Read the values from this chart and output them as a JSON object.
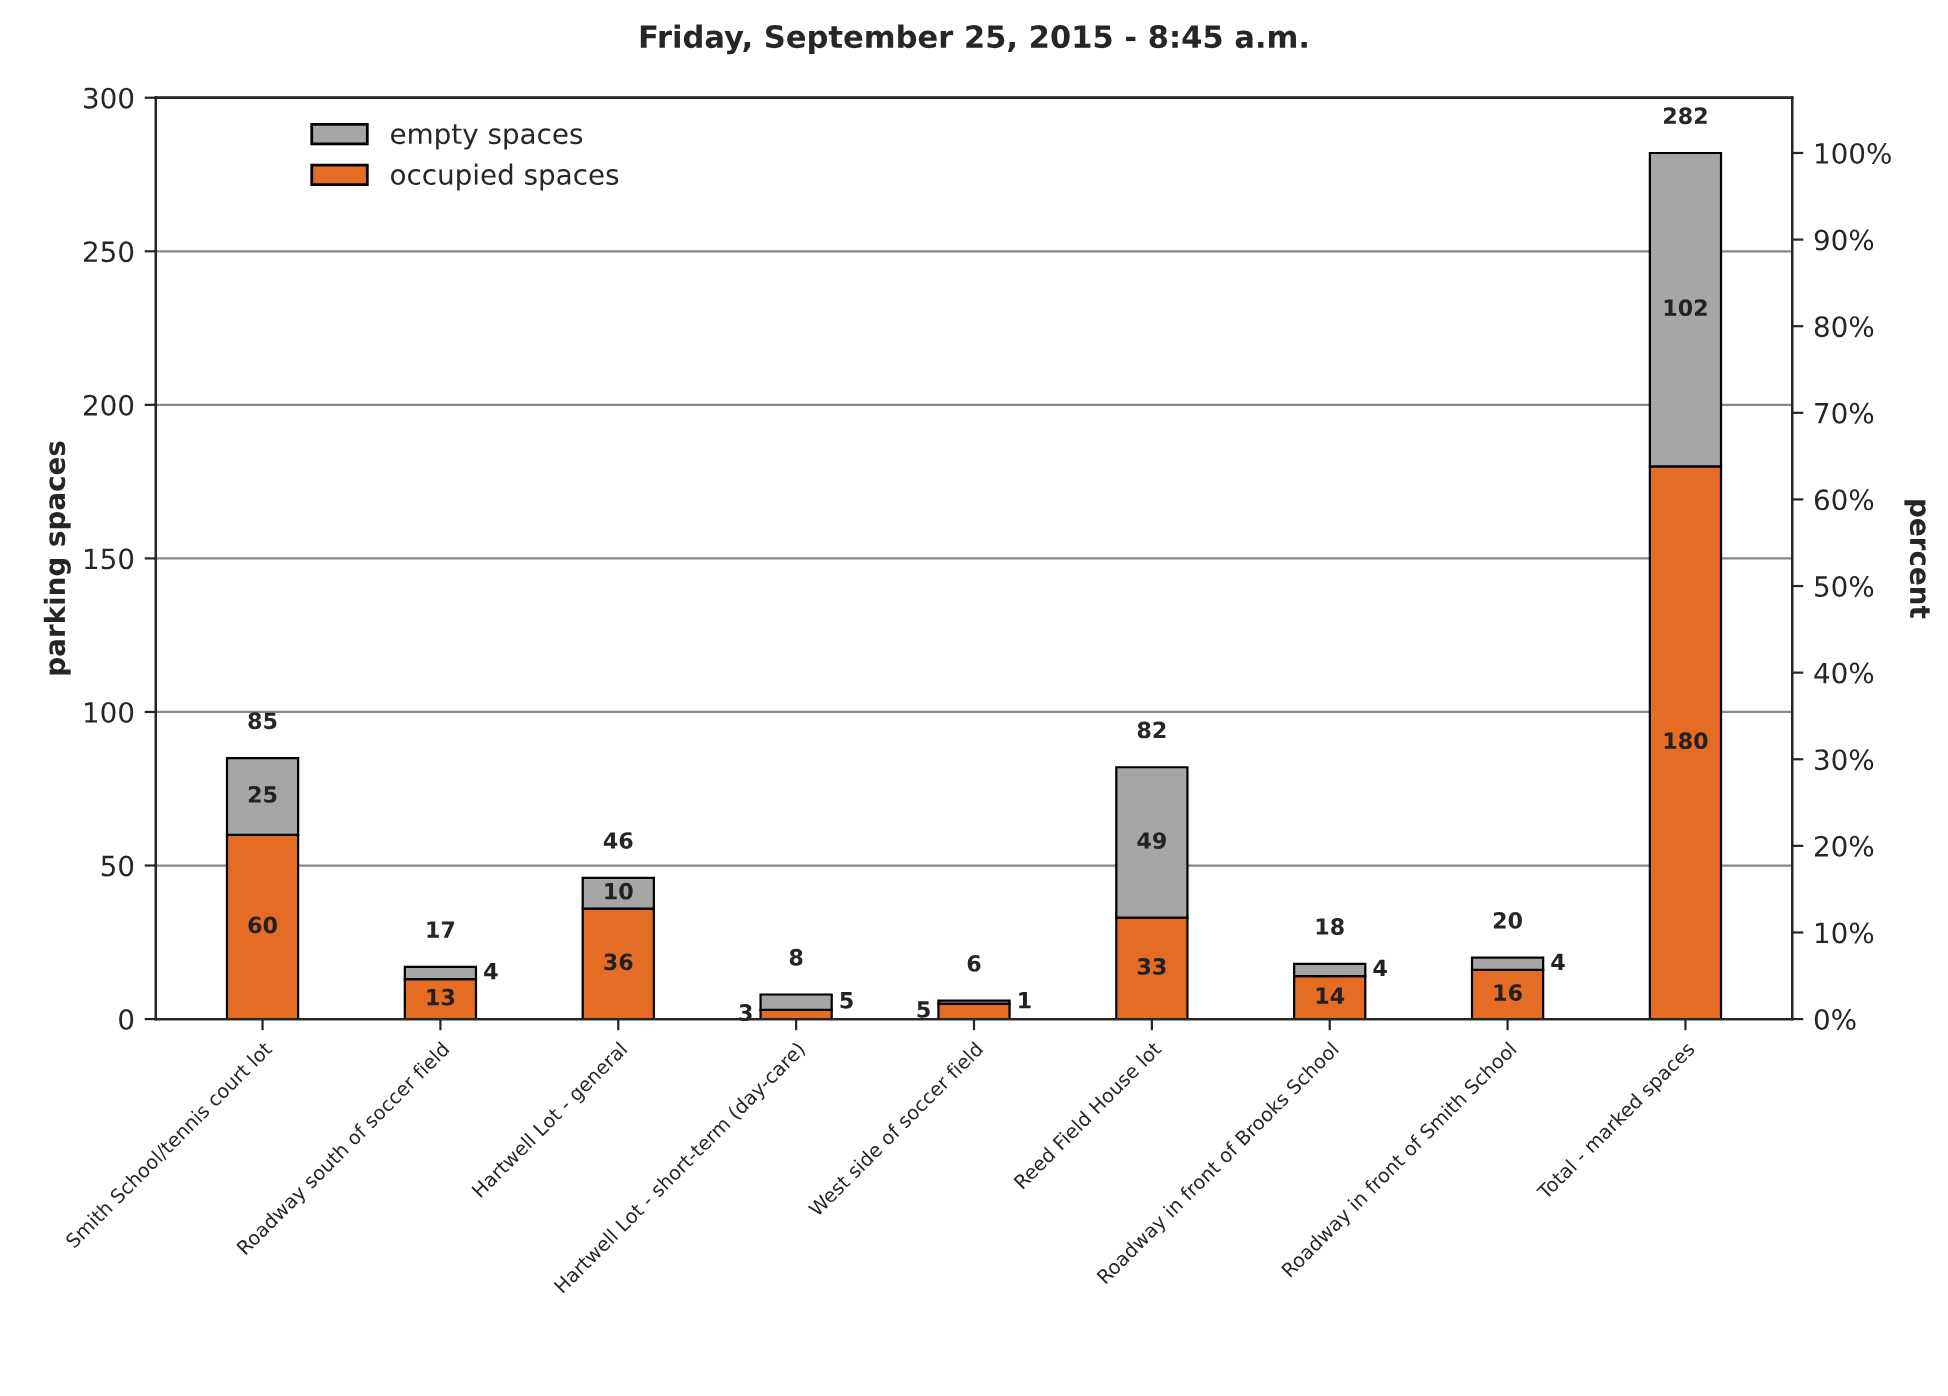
{
  "chart_data": {
    "type": "bar",
    "title": "Friday, September 25, 2015 - 8:45 a.m.",
    "ylabel": "parking spaces",
    "y2label": "percent",
    "categories": [
      "Smith School/tennis court lot",
      "Roadway south of soccer field",
      "Hartwell Lot - general",
      "Hartwell Lot - short-term (day-care)",
      "West side of soccer field",
      "Reed Field House lot",
      "Roadway in front of Brooks School",
      "Roadway in front of Smith School",
      "Total - marked spaces"
    ],
    "stacked": true,
    "series": [
      {
        "name": "occupied spaces",
        "color": "#e46c24",
        "values": [
          60,
          13,
          36,
          3,
          5,
          33,
          14,
          16,
          180
        ]
      },
      {
        "name": "empty spaces",
        "color": "#a6a6a6",
        "values": [
          25,
          4,
          10,
          5,
          1,
          49,
          4,
          4,
          102
        ]
      }
    ],
    "data_labels": true,
    "totals": [
      "85",
      "17",
      "46",
      "8",
      "6",
      "82",
      "18",
      "20",
      "282"
    ],
    "ylim": [
      0,
      300
    ],
    "yticks": [
      0,
      50,
      100,
      150,
      200,
      250,
      300
    ],
    "y2lim": [
      0,
      106.38
    ],
    "y2ticks": [
      {
        "value": 0,
        "label": "0%"
      },
      {
        "value": 10,
        "label": "10%"
      },
      {
        "value": 20,
        "label": "20%"
      },
      {
        "value": 30,
        "label": "30%"
      },
      {
        "value": 40,
        "label": "40%"
      },
      {
        "value": 50,
        "label": "50%"
      },
      {
        "value": 60,
        "label": "60%"
      },
      {
        "value": 70,
        "label": "70%"
      },
      {
        "value": 80,
        "label": "80%"
      },
      {
        "value": 90,
        "label": "90%"
      },
      {
        "value": 100,
        "label": "100%"
      }
    ],
    "grid": "y",
    "legend": "top left"
  }
}
